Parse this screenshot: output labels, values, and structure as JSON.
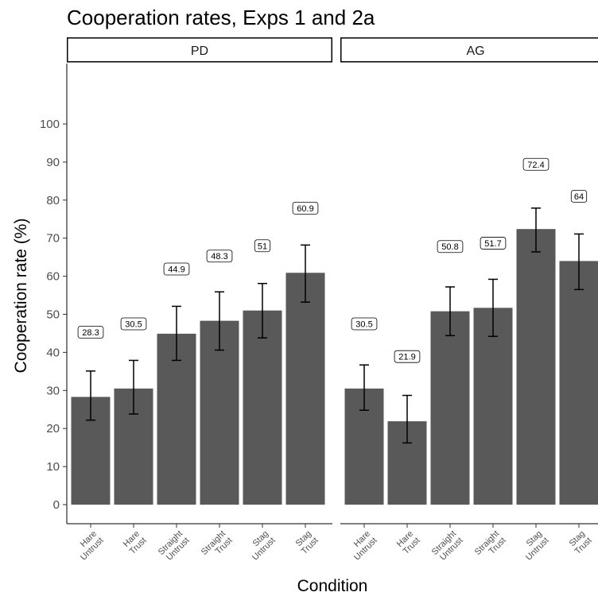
{
  "chart_data": {
    "type": "bar",
    "title": "Cooperation rates, Exps 1 and 2a",
    "xlabel": "Condition",
    "ylabel": "Cooperation rate (%)",
    "ylim": [
      -5,
      115
    ],
    "yticks": [
      0,
      10,
      20,
      30,
      40,
      50,
      60,
      70,
      80,
      90,
      100
    ],
    "grid": false,
    "bar_color": "#595959",
    "panels": [
      {
        "name": "PD",
        "categories": [
          [
            "Hare",
            "Untrust"
          ],
          [
            "Hare",
            "Trust"
          ],
          [
            "Straight",
            "Untrust"
          ],
          [
            "Straight",
            "Trust"
          ],
          [
            "Stag",
            "Untrust"
          ],
          [
            "Stag",
            "Trust"
          ]
        ],
        "values": [
          28.3,
          30.5,
          44.9,
          48.3,
          51,
          60.9
        ],
        "labels": [
          "28.3",
          "30.5",
          "44.9",
          "48.3",
          "51",
          "60.9"
        ],
        "err_low": [
          22.2,
          23.8,
          37.9,
          40.6,
          43.8,
          53.2
        ],
        "err_high": [
          35.1,
          37.9,
          52.1,
          55.9,
          58.1,
          68.2
        ]
      },
      {
        "name": "AG",
        "categories": [
          [
            "Hare",
            "Untrust"
          ],
          [
            "Hare",
            "Trust"
          ],
          [
            "Straight",
            "Untrust"
          ],
          [
            "Straight",
            "Trust"
          ],
          [
            "Stag",
            "Untrust"
          ],
          [
            "Stag",
            "Trust"
          ]
        ],
        "values": [
          30.5,
          21.9,
          50.8,
          51.7,
          72.4,
          64
        ],
        "labels": [
          "30.5",
          "21.9",
          "50.8",
          "51.7",
          "72.4",
          "64"
        ],
        "err_low": [
          24.8,
          16.2,
          44.4,
          44.2,
          66.4,
          56.5
        ],
        "err_high": [
          36.7,
          28.7,
          57.2,
          59.2,
          77.9,
          71.1
        ]
      }
    ]
  }
}
